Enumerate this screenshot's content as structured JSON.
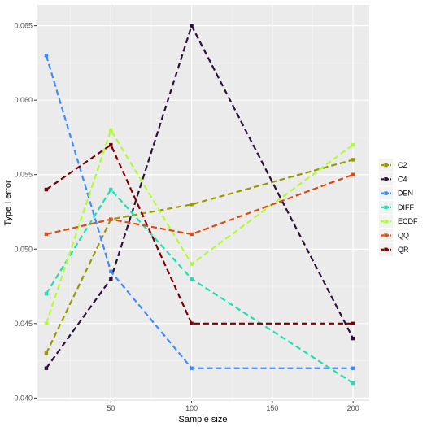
{
  "chart_data": {
    "type": "line",
    "title": "",
    "xlabel": "Sample size",
    "ylabel": "Type I error",
    "x": [
      10,
      50,
      100,
      200
    ],
    "xlim": [
      4,
      210
    ],
    "ylim": [
      0.0398,
      0.0664
    ],
    "x_ticks": [
      50,
      100,
      150,
      200
    ],
    "x_tick_labels": [
      "50",
      "100",
      "150",
      "200"
    ],
    "y_ticks": [
      0.04,
      0.045,
      0.05,
      0.055,
      0.06,
      0.065
    ],
    "y_tick_labels": [
      "0.040",
      "0.045",
      "0.050",
      "0.055",
      "0.060",
      "0.065"
    ],
    "grid": true,
    "legend_position": "right",
    "series": [
      {
        "name": "C2",
        "color": "#999900",
        "values": [
          0.043,
          0.052,
          0.053,
          0.056
        ]
      },
      {
        "name": "C4",
        "color": "#2d0f3d",
        "values": [
          0.042,
          0.048,
          0.065,
          0.044
        ]
      },
      {
        "name": "DEN",
        "color": "#3d8bff",
        "values": [
          0.063,
          0.0485,
          0.042,
          0.042
        ]
      },
      {
        "name": "DIFF",
        "color": "#1ee0b0",
        "values": [
          0.047,
          0.054,
          0.048,
          0.041
        ]
      },
      {
        "name": "ECDF",
        "color": "#adff2f",
        "values": [
          0.045,
          0.058,
          0.049,
          0.057
        ]
      },
      {
        "name": "QQ",
        "color": "#e04a10",
        "values": [
          0.051,
          0.052,
          0.051,
          0.055
        ]
      },
      {
        "name": "QR",
        "color": "#7a0000",
        "values": [
          0.054,
          0.057,
          0.045,
          0.045
        ]
      }
    ]
  }
}
